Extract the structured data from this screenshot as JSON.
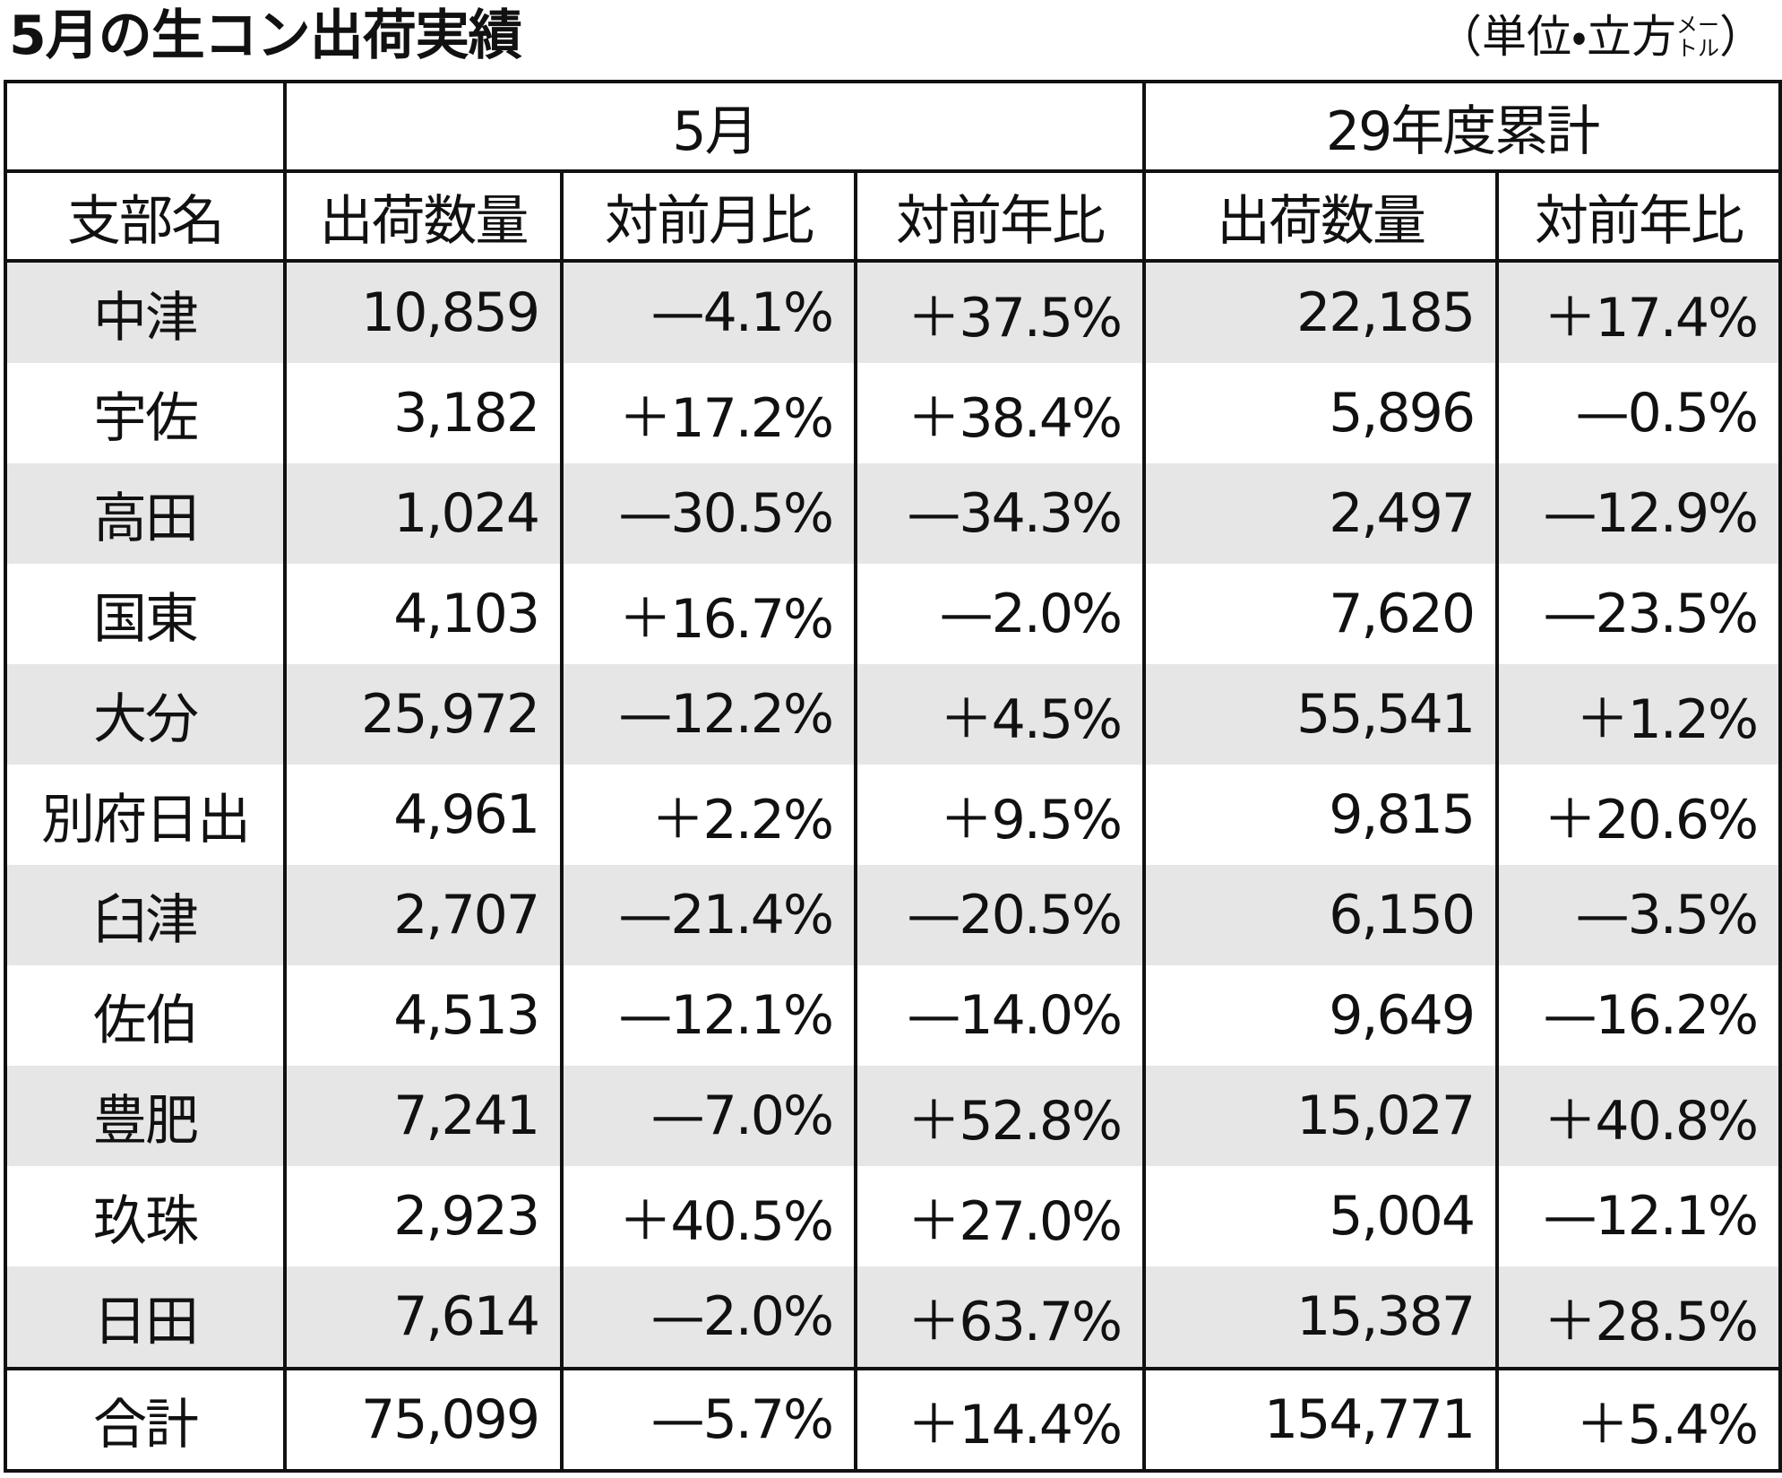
{
  "title": "5月の生コン出荷実績",
  "unit": {
    "open": "（単位・立方",
    "small_top": "メー",
    "small_bottom": "トル",
    "close": "）"
  },
  "table": {
    "group_headers": [
      "5月",
      "29年度累計"
    ],
    "columns": [
      "支部名",
      "出荷数量",
      "対前月比",
      "対前年比",
      "出荷数量",
      "対前年比"
    ],
    "rows": [
      [
        "中津",
        "10,859",
        "—4.1%",
        "＋37.5%",
        "22,185",
        "＋17.4%"
      ],
      [
        "宇佐",
        "3,182",
        "＋17.2%",
        "＋38.4%",
        "5,896",
        "—0.5%"
      ],
      [
        "高田",
        "1,024",
        "—30.5%",
        "—34.3%",
        "2,497",
        "—12.9%"
      ],
      [
        "国東",
        "4,103",
        "＋16.7%",
        "—2.0%",
        "7,620",
        "—23.5%"
      ],
      [
        "大分",
        "25,972",
        "—12.2%",
        "＋4.5%",
        "55,541",
        "＋1.2%"
      ],
      [
        "別府日出",
        "4,961",
        "＋2.2%",
        "＋9.5%",
        "9,815",
        "＋20.6%"
      ],
      [
        "臼津",
        "2,707",
        "—21.4%",
        "—20.5%",
        "6,150",
        "—3.5%"
      ],
      [
        "佐伯",
        "4,513",
        "—12.1%",
        "—14.0%",
        "9,649",
        "—16.2%"
      ],
      [
        "豊肥",
        "7,241",
        "—7.0%",
        "＋52.8%",
        "15,027",
        "＋40.8%"
      ],
      [
        "玖珠",
        "2,923",
        "＋40.5%",
        "＋27.0%",
        "5,004",
        "—12.1%"
      ],
      [
        "日田",
        "7,614",
        "—2.0%",
        "＋63.7%",
        "15,387",
        "＋28.5%"
      ]
    ],
    "total": [
      "合計",
      "75,099",
      "—5.7%",
      "＋14.4%",
      "154,771",
      "＋5.4%"
    ]
  }
}
